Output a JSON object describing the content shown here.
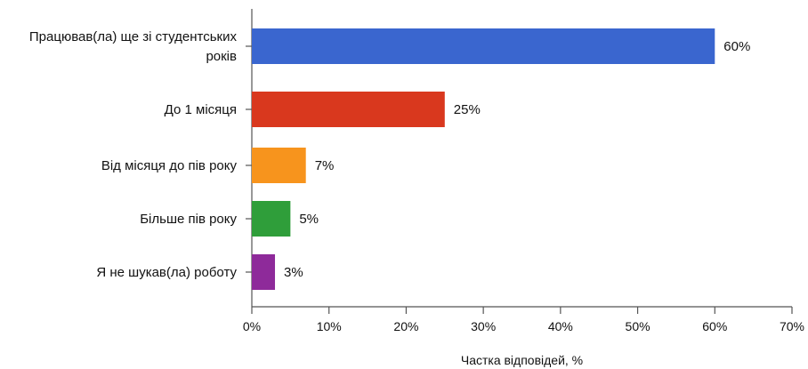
{
  "chart_data": {
    "type": "bar",
    "orientation": "horizontal",
    "categories": [
      [
        "Працював(ла) ще зі студентських",
        "років"
      ],
      [
        "До 1 місяця"
      ],
      [
        "Від місяця до пів року"
      ],
      [
        "Більше пів року"
      ],
      [
        "Я не шукав(ла) роботу"
      ]
    ],
    "values": [
      60,
      25,
      7,
      5,
      3
    ],
    "value_labels": [
      "60%",
      "25%",
      "7%",
      "5%",
      "3%"
    ],
    "colors": [
      "#3a66cf",
      "#d9381e",
      "#f7941d",
      "#2f9e3a",
      "#8e2a9a"
    ],
    "xlim": [
      0,
      70
    ],
    "xticks": [
      0,
      10,
      20,
      30,
      40,
      50,
      60,
      70
    ],
    "xtick_labels": [
      "0%",
      "10%",
      "20%",
      "30%",
      "40%",
      "50%",
      "60%",
      "70%"
    ],
    "xlabel": "Частка відповідей, %",
    "title": "",
    "grid": false,
    "legend": "none"
  }
}
